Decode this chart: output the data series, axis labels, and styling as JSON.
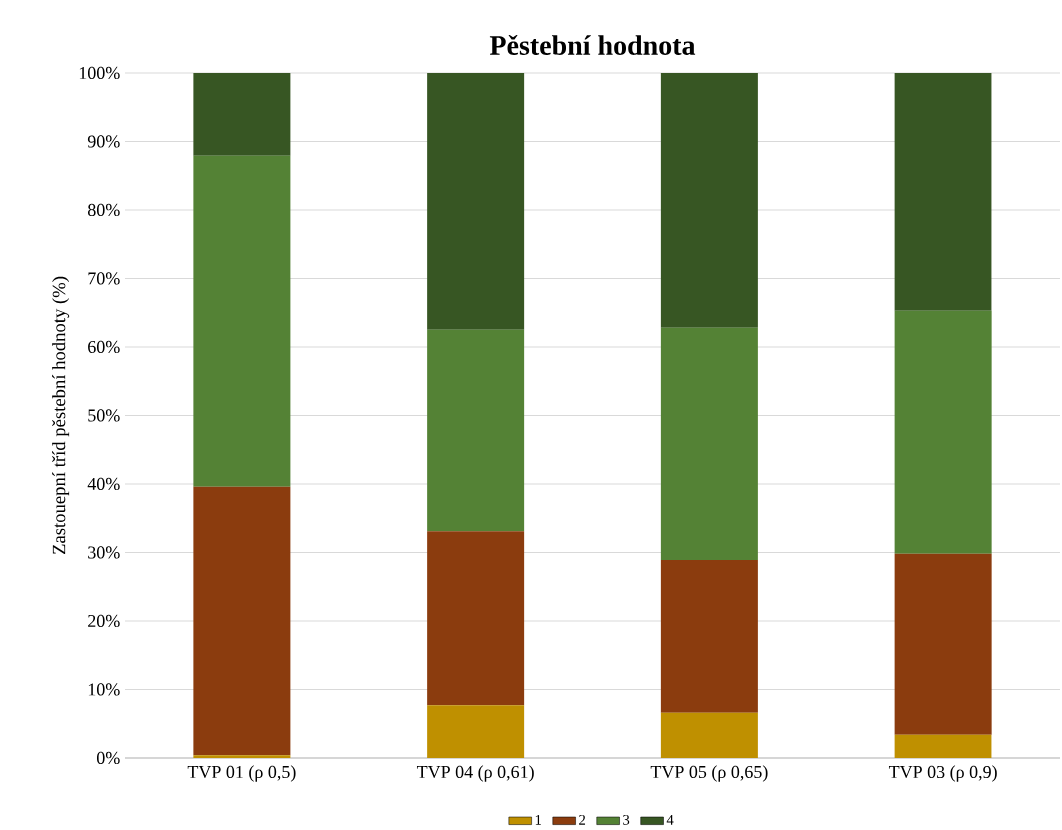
{
  "chart_data": {
    "type": "bar",
    "stacked": true,
    "title": "Pěstební hodnota",
    "ylabel": "Zastouepní tříd pěstební hodnoty (%)",
    "categories": [
      "TVP 01 (ρ 0,5)",
      "TVP 04 (ρ 0,61)",
      "TVP 05 (ρ 0,65)",
      "TVP 03 (ρ 0,9)"
    ],
    "series": [
      {
        "name": "1",
        "color": "#bf9000",
        "values": [
          0.4,
          7.7,
          6.6,
          3.4
        ]
      },
      {
        "name": "2",
        "color": "#8b3c0e",
        "values": [
          39.2,
          25.4,
          22.3,
          26.4
        ]
      },
      {
        "name": "3",
        "color": "#548235",
        "values": [
          48.3,
          29.4,
          33.9,
          35.5
        ]
      },
      {
        "name": "4",
        "color": "#375623",
        "values": [
          12.1,
          37.5,
          37.2,
          34.7
        ]
      }
    ],
    "ylim": [
      0,
      100
    ],
    "yticks": [
      {
        "value": 0,
        "label": "0%"
      },
      {
        "value": 10,
        "label": "10%"
      },
      {
        "value": 20,
        "label": "20%"
      },
      {
        "value": 30,
        "label": "30%"
      },
      {
        "value": 40,
        "label": "40%"
      },
      {
        "value": 50,
        "label": "50%"
      },
      {
        "value": 60,
        "label": "60%"
      },
      {
        "value": 70,
        "label": "70%"
      },
      {
        "value": 80,
        "label": "80%"
      },
      {
        "value": 90,
        "label": "90%"
      },
      {
        "value": 100,
        "label": "100%"
      }
    ],
    "grid": "y",
    "legend": "bottom"
  }
}
